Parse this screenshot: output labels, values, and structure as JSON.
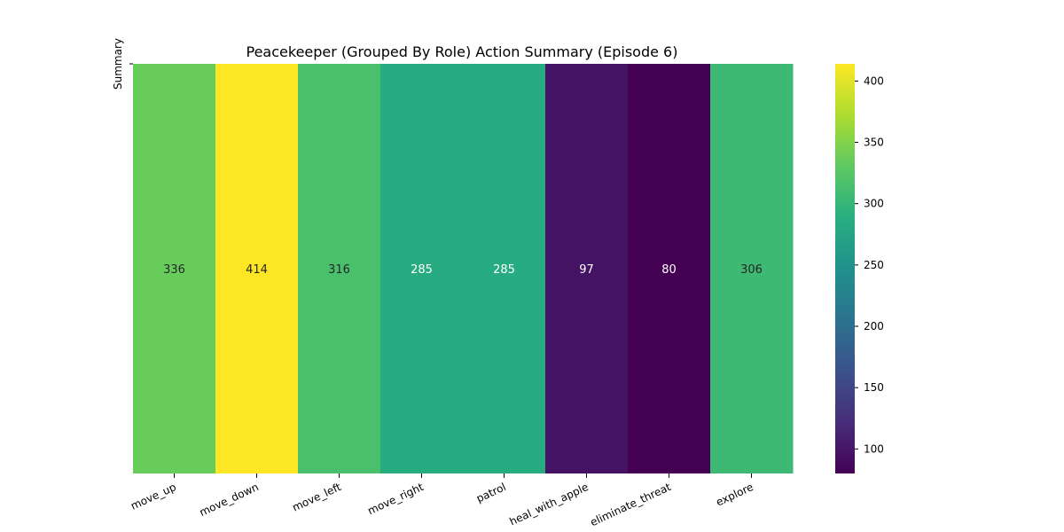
{
  "chart_data": {
    "type": "heatmap",
    "title": "Peacekeeper (Grouped By Role) Action Summary (Episode 6)",
    "ylabel": "Summary",
    "categories": [
      "move_up",
      "move_down",
      "move_left",
      "move_right",
      "patrol",
      "heal_with_apple",
      "eliminate_threat",
      "explore"
    ],
    "values": [
      336,
      414,
      316,
      285,
      285,
      97,
      80,
      306
    ],
    "colormap": "viridis",
    "colorbar_range": [
      80,
      414
    ],
    "colorbar_ticks": [
      100,
      150,
      200,
      250,
      300,
      350,
      400
    ]
  }
}
